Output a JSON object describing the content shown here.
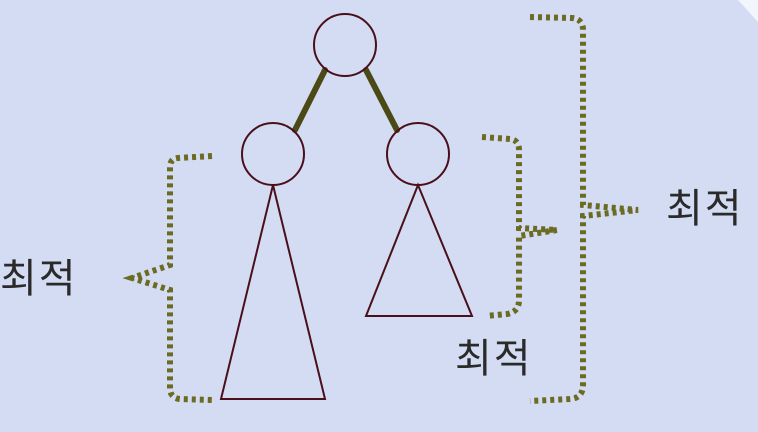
{
  "diagram": {
    "labels": {
      "left": "최적",
      "right_subtree": "최적",
      "whole_tree": "최적"
    },
    "colors": {
      "background": "#d3dcf2",
      "node_stroke": "#4a0f1a",
      "edge": "#4b4a16",
      "brace": "#6b6b24",
      "text": "#2a2a2a"
    }
  }
}
